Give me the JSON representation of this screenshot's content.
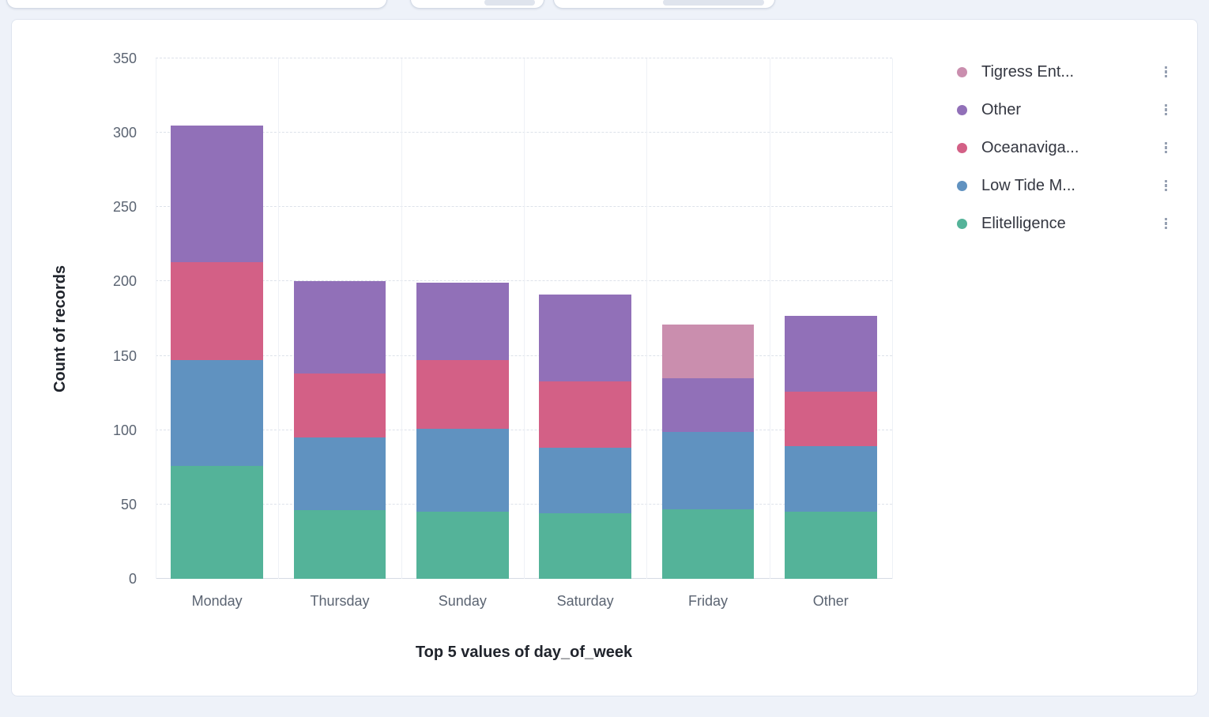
{
  "axes": {
    "y_title": "Count of records",
    "x_title": "Top 5 values of day_of_week"
  },
  "legend": {
    "items": [
      {
        "label": "Tigress Ent...",
        "color": "#CA8EAE"
      },
      {
        "label": "Other",
        "color": "#9170B8"
      },
      {
        "label": "Oceanaviga...",
        "color": "#D36086"
      },
      {
        "label": "Low Tide M...",
        "color": "#6092C0"
      },
      {
        "label": "Elitelligence",
        "color": "#54B399"
      }
    ]
  },
  "chart_data": {
    "type": "bar",
    "stacked": true,
    "title": "",
    "xlabel": "Top 5 values of day_of_week",
    "ylabel": "Count of records",
    "ylim": [
      0,
      350
    ],
    "yticks": [
      0,
      50,
      100,
      150,
      200,
      250,
      300,
      350
    ],
    "grid": "horizontal-dashed",
    "legend_position": "right",
    "categories": [
      "Monday",
      "Thursday",
      "Sunday",
      "Saturday",
      "Friday",
      "Other"
    ],
    "series": [
      {
        "name": "Elitelligence",
        "color": "#54B399",
        "values": [
          76,
          46,
          45,
          44,
          47,
          45
        ]
      },
      {
        "name": "Low Tide M...",
        "color": "#6092C0",
        "values": [
          71,
          49,
          56,
          44,
          52,
          44
        ]
      },
      {
        "name": "Oceanaviga...",
        "color": "#D36086",
        "values": [
          66,
          43,
          46,
          45,
          0,
          37
        ]
      },
      {
        "name": "Other",
        "color": "#9170B8",
        "values": [
          92,
          62,
          52,
          58,
          36,
          51
        ]
      },
      {
        "name": "Tigress Ent...",
        "color": "#CA8EAE",
        "values": [
          0,
          0,
          0,
          0,
          36,
          0
        ]
      }
    ],
    "totals": [
      305,
      200,
      199,
      191,
      171,
      177
    ]
  }
}
